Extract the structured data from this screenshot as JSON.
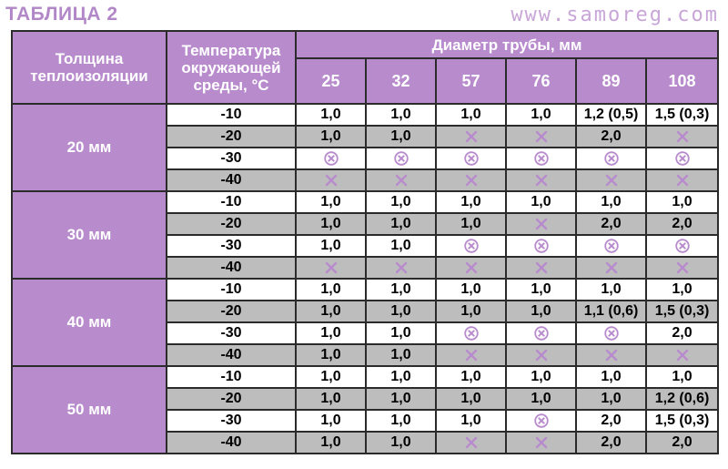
{
  "title": "ТАБЛИЦА 2",
  "website": "www.samoreg.com",
  "headers": {
    "thickness": "Толщина теплоизоляции",
    "temperature": "Температура окружающей среды, °С",
    "diameter": "Диаметр трубы, мм"
  },
  "diameters": [
    "25",
    "32",
    "57",
    "76",
    "89",
    "108"
  ],
  "icons": {
    "x": "cross-icon",
    "ox": "circled-cross-icon",
    "color": "#b88bcd"
  },
  "groups": [
    {
      "label": "20 мм",
      "rows": [
        {
          "temp": "-10",
          "cells": [
            "1,0",
            "1,0",
            "1,0",
            "1,0",
            "1,2 (0,5)",
            "1,5 (0,3)"
          ]
        },
        {
          "temp": "-20",
          "cells": [
            "1,0",
            "1,0",
            "x",
            "x",
            "2,0",
            "x"
          ]
        },
        {
          "temp": "-30",
          "cells": [
            "ox",
            "ox",
            "ox",
            "ox",
            "ox",
            "ox"
          ]
        },
        {
          "temp": "-40",
          "cells": [
            "x",
            "x",
            "x",
            "x",
            "x",
            "x"
          ]
        }
      ]
    },
    {
      "label": "30 мм",
      "rows": [
        {
          "temp": "-10",
          "cells": [
            "1,0",
            "1,0",
            "1,0",
            "1,0",
            "1,0",
            "1,0"
          ]
        },
        {
          "temp": "-20",
          "cells": [
            "1,0",
            "1,0",
            "1,0",
            "x",
            "2,0",
            "2,0"
          ]
        },
        {
          "temp": "-30",
          "cells": [
            "1,0",
            "1,0",
            "ox",
            "ox",
            "ox",
            "ox"
          ]
        },
        {
          "temp": "-40",
          "cells": [
            "x",
            "x",
            "x",
            "x",
            "x",
            "x"
          ]
        }
      ]
    },
    {
      "label": "40 мм",
      "rows": [
        {
          "temp": "-10",
          "cells": [
            "1,0",
            "1,0",
            "1,0",
            "1,0",
            "1,0",
            "1,0"
          ]
        },
        {
          "temp": "-20",
          "cells": [
            "1,0",
            "1,0",
            "1,0",
            "1,0",
            "1,1 (0,6)",
            "1,5 (0,3)"
          ]
        },
        {
          "temp": "-30",
          "cells": [
            "1,0",
            "1,0",
            "ox",
            "ox",
            "ox",
            "2,0"
          ]
        },
        {
          "temp": "-40",
          "cells": [
            "1,0",
            "1,0",
            "x",
            "x",
            "x",
            "x"
          ]
        }
      ]
    },
    {
      "label": "50 мм",
      "rows": [
        {
          "temp": "-10",
          "cells": [
            "1,0",
            "1,0",
            "1,0",
            "1,0",
            "1,0",
            "1,0"
          ]
        },
        {
          "temp": "-20",
          "cells": [
            "1,0",
            "1,0",
            "1,0",
            "1,0",
            "1,0",
            "1,2 (0,6)"
          ]
        },
        {
          "temp": "-30",
          "cells": [
            "1,0",
            "1,0",
            "1,0",
            "ox",
            "2,0",
            "1,5 (0,3)"
          ]
        },
        {
          "temp": "-40",
          "cells": [
            "1,0",
            "1,0",
            "x",
            "x",
            "2,0",
            "2,0"
          ]
        }
      ]
    }
  ]
}
